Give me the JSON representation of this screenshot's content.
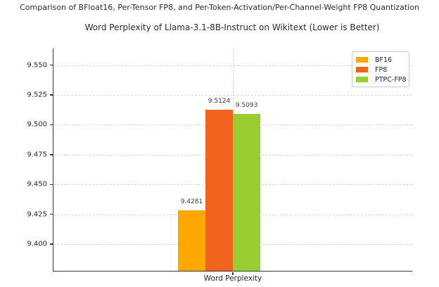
{
  "chart_data": {
    "type": "bar",
    "suptitle": "Comparison of BFloat16, Per-Tensor FP8, and Per-Token-Activation/Per-Channel-Weight FP8 Quantization",
    "title": "Word Perplexity of Llama-3.1-8B-Instruct on Wikitext (Lower is Better)",
    "xlabel": "",
    "ylabel": "",
    "categories": [
      "Word Perplexity"
    ],
    "series": [
      {
        "name": "BF16",
        "values": [
          9.4281
        ],
        "value_label": "9.4281",
        "color": "#FFA800"
      },
      {
        "name": "FP8",
        "values": [
          9.5124
        ],
        "value_label": "9.5124",
        "color": "#F0641E"
      },
      {
        "name": "PTPC-FP8",
        "values": [
          9.5093
        ],
        "value_label": "9.5093",
        "color": "#9ACD32"
      }
    ],
    "yticks": [
      9.4,
      9.425,
      9.45,
      9.475,
      9.5,
      9.525,
      9.55
    ],
    "ytick_labels": [
      "9.400",
      "9.425",
      "9.450",
      "9.475",
      "9.500",
      "9.525",
      "9.550"
    ],
    "ylim": [
      9.3776,
      9.564
    ],
    "grid": "dashed",
    "legend_position": "upper right",
    "colors": {
      "spine": "#3a3a3a",
      "grid": "#d9d9d9",
      "text": "#262626",
      "value_label_text": "#3a3a3a"
    }
  }
}
